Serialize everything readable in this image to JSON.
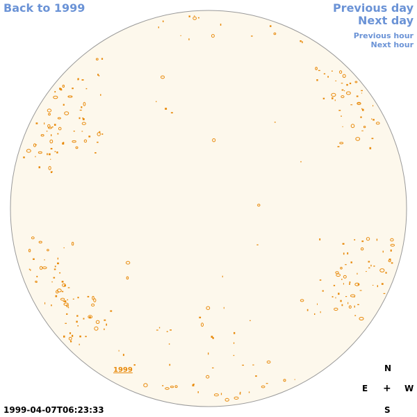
{
  "nav": {
    "back_to_year": "Back to 1999",
    "previous_day": "Previous day",
    "next_day": "Next day",
    "previous_hour": "Previous hour",
    "next_hour": "Next hour"
  },
  "sun_disk": {
    "year_link": "1999",
    "fill_color": "#fdf8ec",
    "border_color": "#999999",
    "feature_color": "#e88a0c"
  },
  "compass": {
    "north": "N",
    "east": "E",
    "west": "W",
    "south": "S",
    "center": "+"
  },
  "timestamp": "1999-04-07T06:23:33"
}
